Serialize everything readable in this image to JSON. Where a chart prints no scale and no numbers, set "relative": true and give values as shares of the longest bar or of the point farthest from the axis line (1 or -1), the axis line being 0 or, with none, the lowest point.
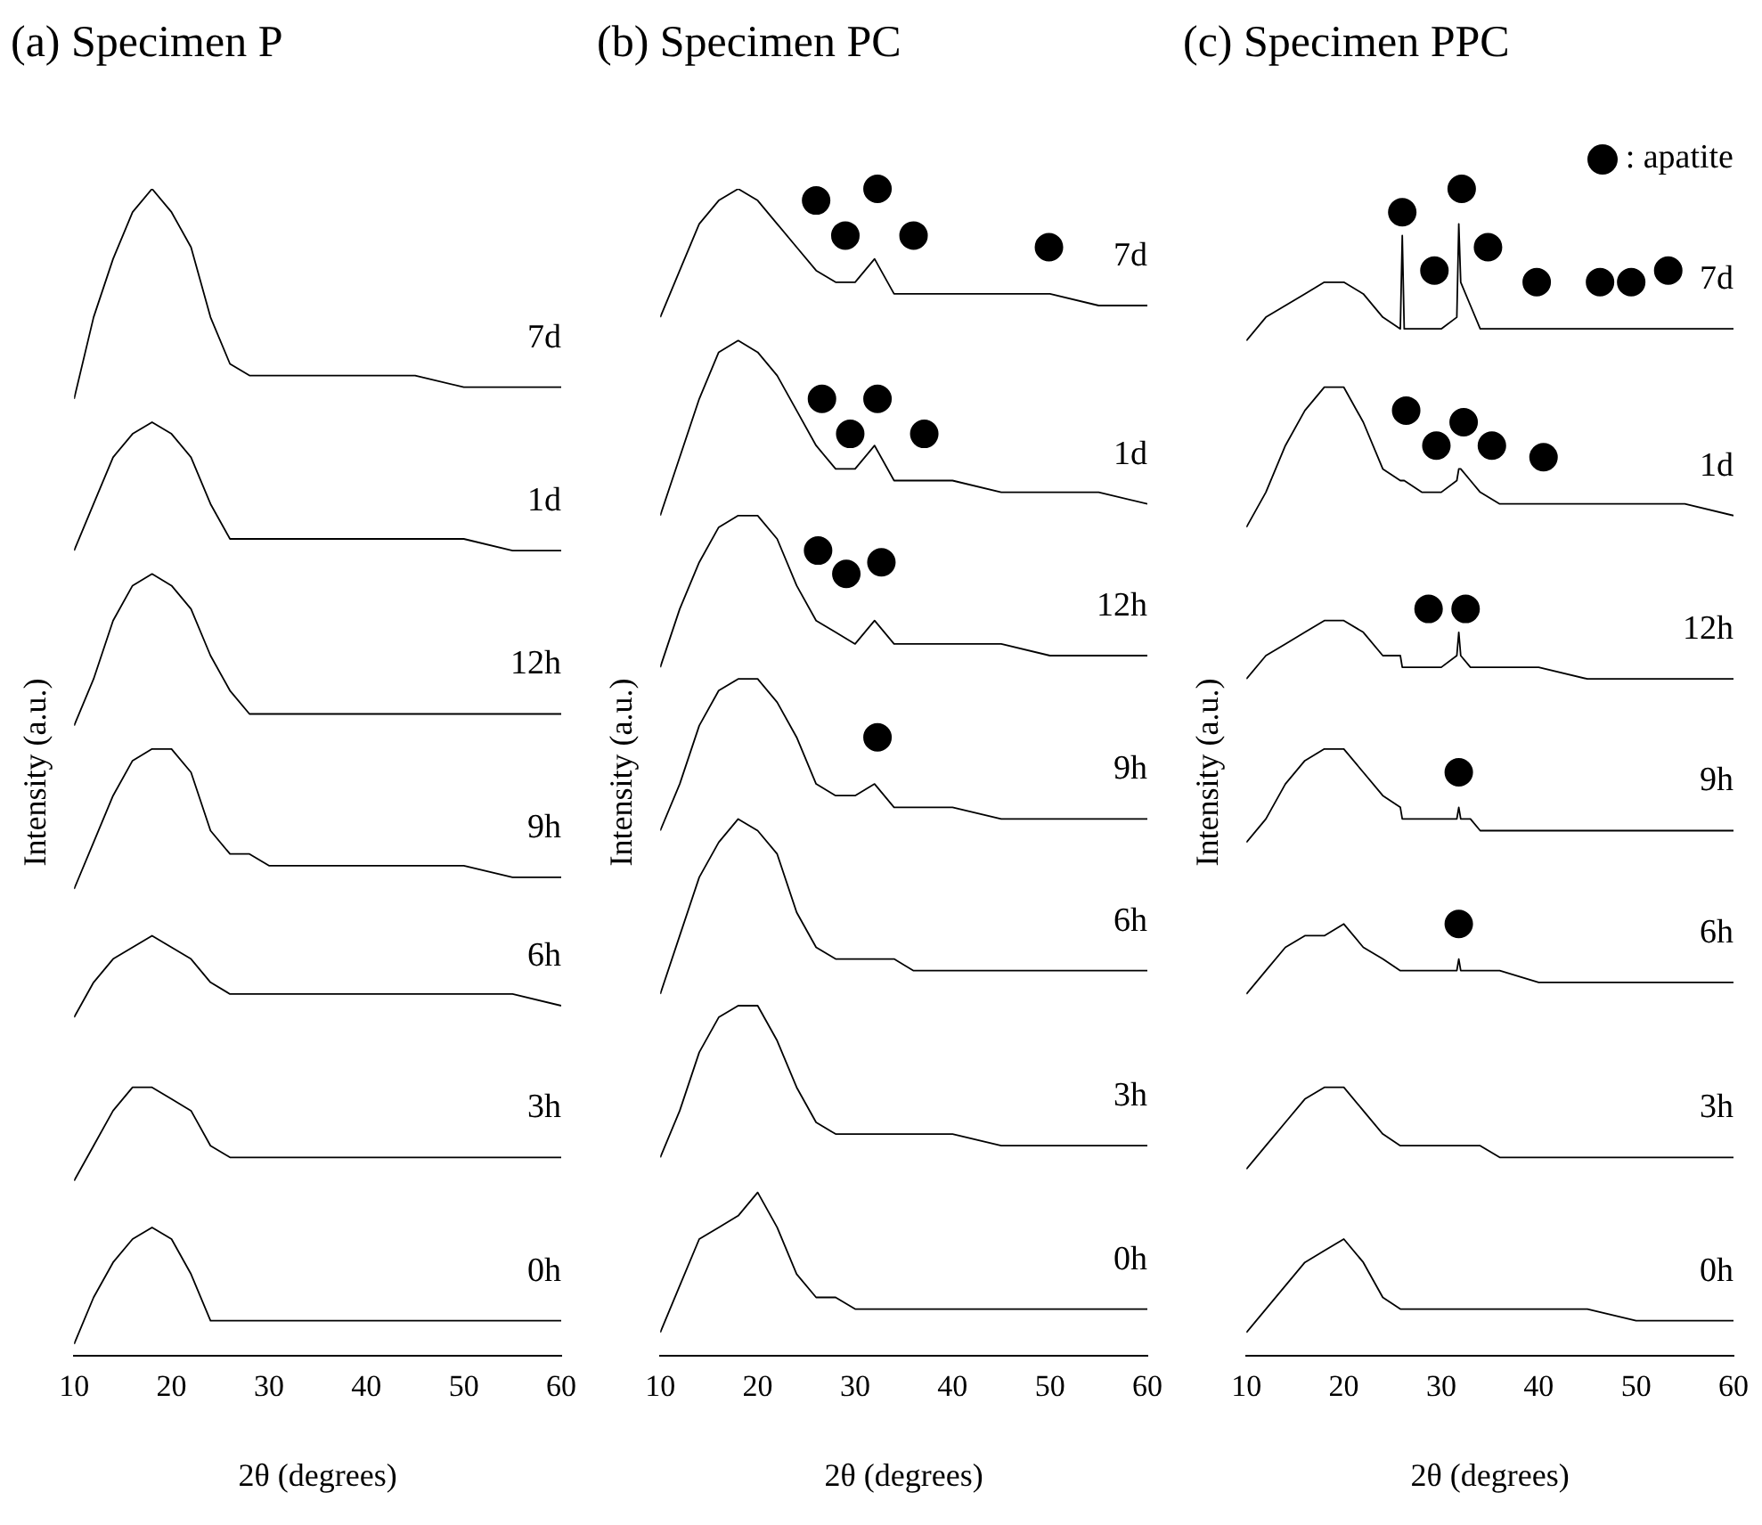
{
  "chart_data": [
    {
      "type": "line",
      "title": "(a) Specimen P",
      "xlabel": "2θ (degrees)",
      "ylabel": "Intensity (a.u.)",
      "relative": true,
      "xlim": [
        10,
        60
      ],
      "xticks": [
        10,
        20,
        30,
        40,
        50,
        60
      ],
      "grid": false,
      "legend": false,
      "marker": "none",
      "line_style": "solid",
      "x": [
        10,
        12,
        14,
        16,
        18,
        20,
        22,
        24,
        26,
        28,
        30,
        35,
        40,
        45,
        50,
        55,
        60
      ],
      "series": [
        {
          "name": "7d",
          "color": "#000000",
          "values": [
            0.82,
            0.89,
            0.94,
            0.98,
            1.0,
            0.98,
            0.95,
            0.89,
            0.85,
            0.84,
            0.84,
            0.84,
            0.84,
            0.84,
            0.83,
            0.83,
            0.83
          ]
        },
        {
          "name": "1d",
          "color": "#000000",
          "values": [
            0.69,
            0.73,
            0.77,
            0.79,
            0.8,
            0.79,
            0.77,
            0.73,
            0.7,
            0.7,
            0.7,
            0.7,
            0.7,
            0.7,
            0.7,
            0.69,
            0.69
          ]
        },
        {
          "name": "12h",
          "color": "#000000",
          "values": [
            0.54,
            0.58,
            0.63,
            0.66,
            0.67,
            0.66,
            0.64,
            0.6,
            0.57,
            0.55,
            0.55,
            0.55,
            0.55,
            0.55,
            0.55,
            0.55,
            0.55
          ]
        },
        {
          "name": "9h",
          "color": "#000000",
          "values": [
            0.4,
            0.44,
            0.48,
            0.51,
            0.52,
            0.52,
            0.5,
            0.45,
            0.43,
            0.43,
            0.42,
            0.42,
            0.42,
            0.42,
            0.42,
            0.41,
            0.41
          ]
        },
        {
          "name": "6h",
          "color": "#000000",
          "values": [
            0.29,
            0.32,
            0.34,
            0.35,
            0.36,
            0.35,
            0.34,
            0.32,
            0.31,
            0.31,
            0.31,
            0.31,
            0.31,
            0.31,
            0.31,
            0.31,
            0.3
          ]
        },
        {
          "name": "3h",
          "color": "#000000",
          "values": [
            0.15,
            0.18,
            0.21,
            0.23,
            0.23,
            0.22,
            0.21,
            0.18,
            0.17,
            0.17,
            0.17,
            0.17,
            0.17,
            0.17,
            0.17,
            0.17,
            0.17
          ]
        },
        {
          "name": "0h",
          "color": "#000000",
          "values": [
            0.01,
            0.05,
            0.08,
            0.1,
            0.11,
            0.1,
            0.07,
            0.03,
            0.03,
            0.03,
            0.03,
            0.03,
            0.03,
            0.03,
            0.03,
            0.03,
            0.03
          ]
        }
      ]
    },
    {
      "type": "line",
      "title": "(b) Specimen PC",
      "xlabel": "2θ (degrees)",
      "ylabel": "Intensity (a.u.)",
      "relative": true,
      "xlim": [
        10,
        60
      ],
      "xticks": [
        10,
        20,
        30,
        40,
        50,
        60
      ],
      "grid": false,
      "legend": false,
      "marker": "none",
      "line_style": "solid",
      "x": [
        10,
        12,
        14,
        16,
        18,
        20,
        22,
        24,
        26,
        28,
        30,
        32,
        34,
        36,
        40,
        45,
        50,
        55,
        60
      ],
      "series": [
        {
          "name": "7d",
          "color": "#000000",
          "values": [
            0.89,
            0.93,
            0.97,
            0.99,
            1.0,
            0.99,
            0.97,
            0.95,
            0.93,
            0.92,
            0.92,
            0.94,
            0.91,
            0.91,
            0.91,
            0.91,
            0.91,
            0.9,
            0.9
          ]
        },
        {
          "name": "1d",
          "color": "#000000",
          "values": [
            0.72,
            0.77,
            0.82,
            0.86,
            0.87,
            0.86,
            0.84,
            0.81,
            0.78,
            0.76,
            0.76,
            0.78,
            0.75,
            0.75,
            0.75,
            0.74,
            0.74,
            0.74,
            0.73
          ]
        },
        {
          "name": "12h",
          "color": "#000000",
          "values": [
            0.59,
            0.64,
            0.68,
            0.71,
            0.72,
            0.72,
            0.7,
            0.66,
            0.63,
            0.62,
            0.61,
            0.63,
            0.61,
            0.61,
            0.61,
            0.61,
            0.6,
            0.6,
            0.6
          ]
        },
        {
          "name": "9h",
          "color": "#000000",
          "values": [
            0.45,
            0.49,
            0.54,
            0.57,
            0.58,
            0.58,
            0.56,
            0.53,
            0.49,
            0.48,
            0.48,
            0.49,
            0.47,
            0.47,
            0.47,
            0.46,
            0.46,
            0.46,
            0.46
          ]
        },
        {
          "name": "6h",
          "color": "#000000",
          "values": [
            0.31,
            0.36,
            0.41,
            0.44,
            0.46,
            0.45,
            0.43,
            0.38,
            0.35,
            0.34,
            0.34,
            0.34,
            0.34,
            0.33,
            0.33,
            0.33,
            0.33,
            0.33,
            0.33
          ]
        },
        {
          "name": "3h",
          "color": "#000000",
          "values": [
            0.17,
            0.21,
            0.26,
            0.29,
            0.3,
            0.3,
            0.27,
            0.23,
            0.2,
            0.19,
            0.19,
            0.19,
            0.19,
            0.19,
            0.19,
            0.18,
            0.18,
            0.18,
            0.18
          ]
        },
        {
          "name": "0h",
          "color": "#000000",
          "values": [
            0.02,
            0.06,
            0.1,
            0.11,
            0.12,
            0.14,
            0.11,
            0.07,
            0.05,
            0.05,
            0.04,
            0.04,
            0.04,
            0.04,
            0.04,
            0.04,
            0.04,
            0.04,
            0.04
          ]
        },
        {
          "type": "scatter",
          "marker": "circle",
          "color": "#000000",
          "x": [
            26.0,
            29.0,
            32.3,
            36.0,
            49.9,
            26.6,
            29.5,
            32.3,
            37.1,
            26.2,
            29.1,
            32.7,
            32.3
          ],
          "values": [
            0.99,
            0.96,
            1.0,
            0.96,
            0.95,
            0.82,
            0.79,
            0.82,
            0.79,
            0.69,
            0.67,
            0.68,
            0.53
          ]
        }
      ]
    },
    {
      "type": "line",
      "title": "(c) Specimen PPC",
      "xlabel": "2θ (degrees)",
      "ylabel": "Intensity (a.u.)",
      "relative": true,
      "xlim": [
        10,
        60
      ],
      "xticks": [
        10,
        20,
        30,
        40,
        50,
        60
      ],
      "grid": false,
      "legend": "top right",
      "marker": "none",
      "line_style": "solid",
      "x": [
        10,
        12,
        14,
        16,
        18,
        20,
        22,
        24,
        25.8,
        26,
        26.2,
        28,
        30,
        31.6,
        31.8,
        32,
        33,
        34,
        36,
        40,
        45,
        50,
        55,
        60
      ],
      "series": [
        {
          "name": "7d",
          "color": "#000000",
          "values": [
            0.87,
            0.89,
            0.9,
            0.91,
            0.92,
            0.92,
            0.91,
            0.89,
            0.88,
            0.96,
            0.88,
            0.88,
            0.88,
            0.89,
            0.97,
            0.92,
            0.9,
            0.88,
            0.88,
            0.88,
            0.88,
            0.88,
            0.88,
            0.88
          ]
        },
        {
          "name": "1d",
          "color": "#000000",
          "values": [
            0.71,
            0.74,
            0.78,
            0.81,
            0.83,
            0.83,
            0.8,
            0.76,
            0.75,
            0.75,
            0.75,
            0.74,
            0.74,
            0.75,
            0.76,
            0.76,
            0.75,
            0.74,
            0.73,
            0.73,
            0.73,
            0.73,
            0.73,
            0.72
          ]
        },
        {
          "name": "12h",
          "color": "#000000",
          "values": [
            0.58,
            0.6,
            0.61,
            0.62,
            0.63,
            0.63,
            0.62,
            0.6,
            0.6,
            0.59,
            0.59,
            0.59,
            0.59,
            0.6,
            0.62,
            0.6,
            0.59,
            0.59,
            0.59,
            0.59,
            0.58,
            0.58,
            0.58,
            0.58
          ]
        },
        {
          "name": "9h",
          "color": "#000000",
          "values": [
            0.44,
            0.46,
            0.49,
            0.51,
            0.52,
            0.52,
            0.5,
            0.48,
            0.47,
            0.46,
            0.46,
            0.46,
            0.46,
            0.46,
            0.47,
            0.46,
            0.46,
            0.45,
            0.45,
            0.45,
            0.45,
            0.45,
            0.45,
            0.45
          ]
        },
        {
          "name": "6h",
          "color": "#000000",
          "values": [
            0.31,
            0.33,
            0.35,
            0.36,
            0.36,
            0.37,
            0.35,
            0.34,
            0.33,
            0.33,
            0.33,
            0.33,
            0.33,
            0.33,
            0.34,
            0.33,
            0.33,
            0.33,
            0.33,
            0.32,
            0.32,
            0.32,
            0.32,
            0.32
          ]
        },
        {
          "name": "3h",
          "color": "#000000",
          "values": [
            0.16,
            0.18,
            0.2,
            0.22,
            0.23,
            0.23,
            0.21,
            0.19,
            0.18,
            0.18,
            0.18,
            0.18,
            0.18,
            0.18,
            0.18,
            0.18,
            0.18,
            0.18,
            0.17,
            0.17,
            0.17,
            0.17,
            0.17,
            0.17
          ]
        },
        {
          "name": "0h",
          "color": "#000000",
          "values": [
            0.02,
            0.04,
            0.06,
            0.08,
            0.09,
            0.1,
            0.08,
            0.05,
            0.04,
            0.04,
            0.04,
            0.04,
            0.04,
            0.04,
            0.04,
            0.04,
            0.04,
            0.04,
            0.04,
            0.04,
            0.04,
            0.03,
            0.03,
            0.03
          ]
        },
        {
          "type": "scatter",
          "name": ": apatite",
          "marker": "circle",
          "color": "#000000",
          "x": [
            26.0,
            29.3,
            32.1,
            34.8,
            39.8,
            46.3,
            49.5,
            53.3,
            26.4,
            29.5,
            32.3,
            35.2,
            40.5,
            28.7,
            32.5,
            31.8,
            31.8
          ],
          "values": [
            0.98,
            0.93,
            1.0,
            0.95,
            0.92,
            0.92,
            0.92,
            0.93,
            0.81,
            0.78,
            0.8,
            0.78,
            0.77,
            0.64,
            0.64,
            0.5,
            0.37
          ]
        }
      ]
    }
  ]
}
